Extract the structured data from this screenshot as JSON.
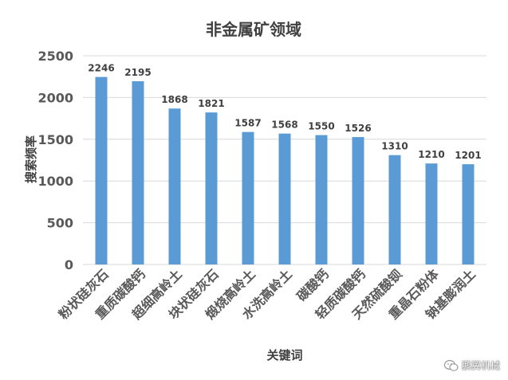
{
  "chart_data": {
    "type": "bar",
    "title": "非金属矿领域",
    "xlabel": "关键词",
    "ylabel": "搜索频率",
    "categories": [
      "粉状硅灰石",
      "重质碳酸钙",
      "超细高岭土",
      "块状硅灰石",
      "煅烧高岭土",
      "水洗高岭土",
      "碳酸钙",
      "轻质碳酸钙",
      "天然硫酸钡",
      "重晶石粉体",
      "钠基膨润土"
    ],
    "values": [
      2246,
      2195,
      1868,
      1821,
      1587,
      1568,
      1550,
      1526,
      1310,
      1210,
      1201
    ],
    "ylim": [
      0,
      2500
    ],
    "yticks": [
      0,
      500,
      1000,
      1500,
      2000,
      2500
    ],
    "grid": true,
    "legend": "none",
    "bar_color": "#5b9bd5"
  },
  "watermark": {
    "text": "鹏翼机械",
    "icon": "wechat-icon"
  }
}
